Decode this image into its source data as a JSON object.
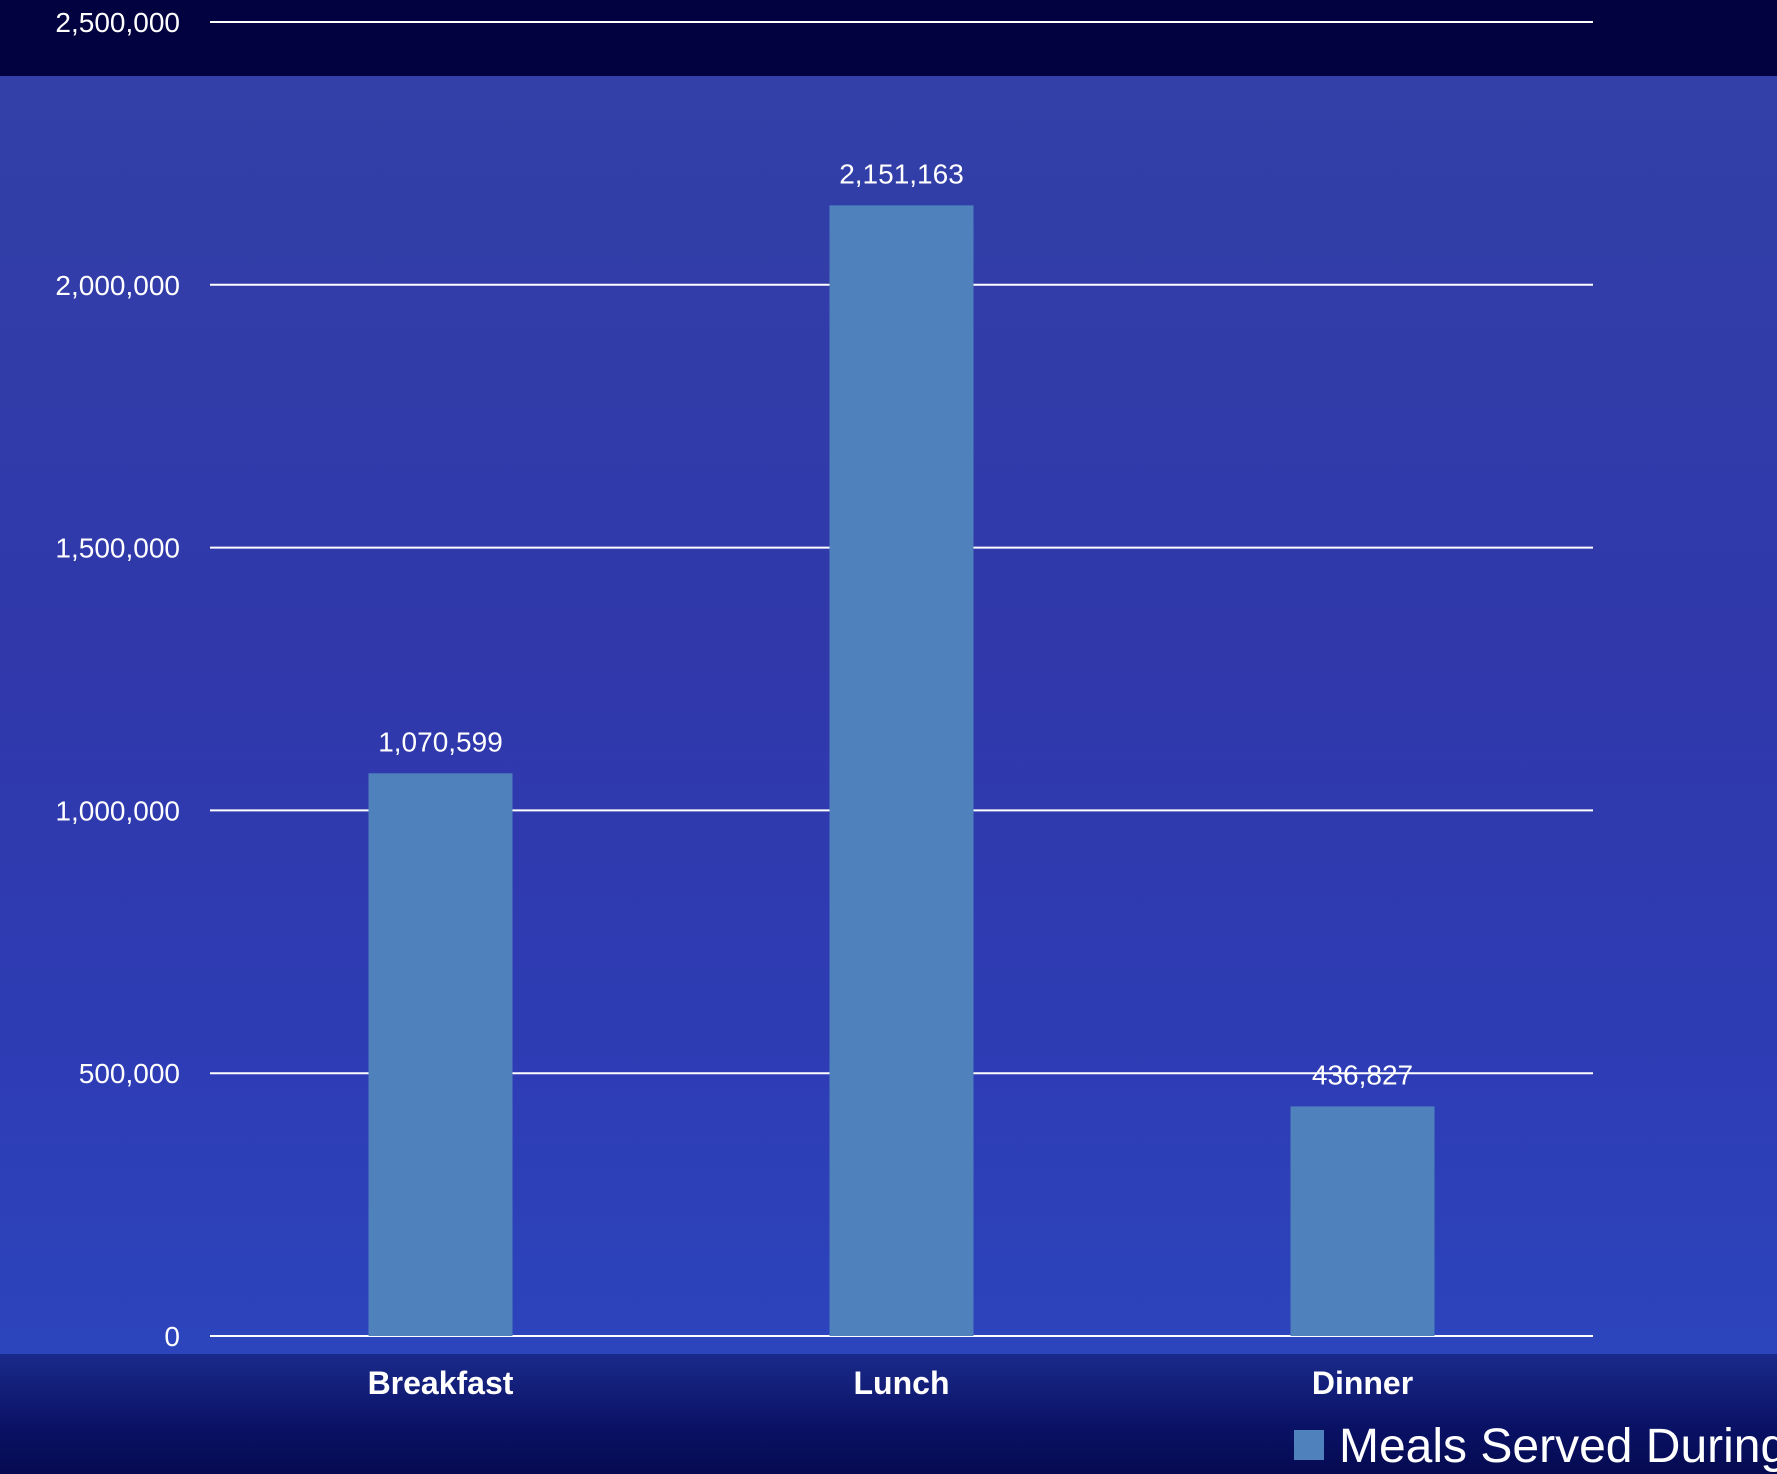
{
  "chart_data": {
    "type": "bar",
    "categories": [
      "Breakfast",
      "Lunch",
      "Dinner"
    ],
    "series": [
      {
        "name": "Meals Served During",
        "values": [
          1070599,
          2151163,
          436827
        ],
        "data_labels": [
          "1,070,599",
          "2,151,163",
          "436,827"
        ]
      }
    ],
    "ylim": [
      0,
      2500000
    ],
    "y_ticks": [
      0,
      500000,
      1000000,
      1500000,
      2000000,
      2500000
    ],
    "y_tick_labels": [
      "0",
      "500,000",
      "1,000,000",
      "1,500,000",
      "2,000,000",
      "2,500,000"
    ],
    "grid": true,
    "legend_position": "bottom-right",
    "colors": {
      "bar": "#4f81bd",
      "grid": "#ffffff",
      "text": "#ffffff"
    }
  }
}
